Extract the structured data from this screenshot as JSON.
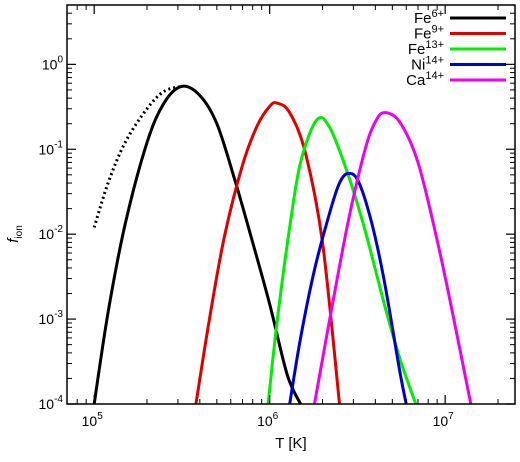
{
  "chart_data": {
    "type": "line",
    "title": "",
    "xlabel": "T [K]",
    "ylabel": "f",
    "ylabel_sub": "ion",
    "x_scale": "log",
    "y_scale": "log",
    "xlim": [
      70000,
      25000000
    ],
    "ylim": [
      0.0001,
      5
    ],
    "grid": false,
    "legend_position": "top-right",
    "x_ticks": [
      {
        "value": 100000,
        "base": "10",
        "exp": "5"
      },
      {
        "value": 1000000,
        "base": "10",
        "exp": "6"
      },
      {
        "value": 10000000,
        "base": "10",
        "exp": "7"
      }
    ],
    "y_ticks": [
      {
        "value": 0.0001,
        "base": "10",
        "exp": "-4"
      },
      {
        "value": 0.001,
        "base": "10",
        "exp": "-3"
      },
      {
        "value": 0.01,
        "base": "10",
        "exp": "-2"
      },
      {
        "value": 0.1,
        "base": "10",
        "exp": "-1"
      },
      {
        "value": 1,
        "base": "10",
        "exp": "0"
      }
    ],
    "series": [
      {
        "name": "Fe6+",
        "label_base": "Fe",
        "label_sup": "6+",
        "color": "#000000",
        "peak_T": 315000,
        "peak_f": 0.55,
        "x": [
          100000,
          120000,
          150000,
          200000,
          250000,
          315000,
          400000,
          500000,
          630000,
          800000,
          1000000,
          1260000,
          1500000
        ],
        "y": [
          0.0001,
          0.0012,
          0.013,
          0.12,
          0.35,
          0.55,
          0.43,
          0.2,
          0.045,
          0.008,
          0.0015,
          0.00022,
          0.0001
        ]
      },
      {
        "name": "Fe9+",
        "label_base": "Fe",
        "label_sup": "9+",
        "color": "#dd0000",
        "peak_T": 1100000,
        "peak_f": 0.35,
        "x": [
          380000,
          450000,
          550000,
          700000,
          850000,
          1000000,
          1100000,
          1300000,
          1600000,
          2000000,
          2500000
        ],
        "y": [
          0.0001,
          0.0009,
          0.009,
          0.065,
          0.19,
          0.32,
          0.35,
          0.27,
          0.09,
          0.008,
          0.0001
        ]
      },
      {
        "name": "Fe13+",
        "label_base": "Fe",
        "label_sup": "13+",
        "color": "#00ee00",
        "peak_T": 1850000,
        "peak_f": 0.22,
        "x": [
          980000,
          1100000,
          1300000,
          1500000,
          1850000,
          2200000,
          2800000,
          3500000,
          4500000,
          5500000,
          6800000
        ],
        "y": [
          0.0001,
          0.0009,
          0.012,
          0.07,
          0.22,
          0.18,
          0.05,
          0.011,
          0.0015,
          0.00035,
          0.0001
        ]
      },
      {
        "name": "Ni14+",
        "label_base": "Ni",
        "label_sup": "14+",
        "color": "#0000cc",
        "peak_T": 2800000,
        "peak_f": 0.052,
        "x": [
          1300000,
          1500000,
          1800000,
          2200000,
          2500000,
          2800000,
          3200000,
          3800000,
          4500000,
          5500000,
          6000000
        ],
        "y": [
          0.0001,
          0.0006,
          0.0038,
          0.018,
          0.04,
          0.052,
          0.042,
          0.014,
          0.0028,
          0.00025,
          0.0001
        ]
      },
      {
        "name": "Ca14+",
        "label_base": "Ca",
        "label_sup": "14+",
        "color": "#ee00ee",
        "peak_T": 4500000,
        "peak_f": 0.27,
        "x": [
          1800000,
          2200000,
          2800000,
          3500000,
          4000000,
          4500000,
          5500000,
          7000000,
          9000000,
          11000000,
          14000000
        ],
        "y": [
          0.0001,
          0.001,
          0.014,
          0.1,
          0.21,
          0.27,
          0.21,
          0.07,
          0.0085,
          0.0012,
          0.0001
        ]
      }
    ],
    "dotted_series": {
      "color": "#000000",
      "x": [
        100000,
        120000,
        150000,
        200000,
        250000,
        315000
      ],
      "y": [
        0.012,
        0.04,
        0.12,
        0.3,
        0.48,
        0.55
      ]
    }
  }
}
